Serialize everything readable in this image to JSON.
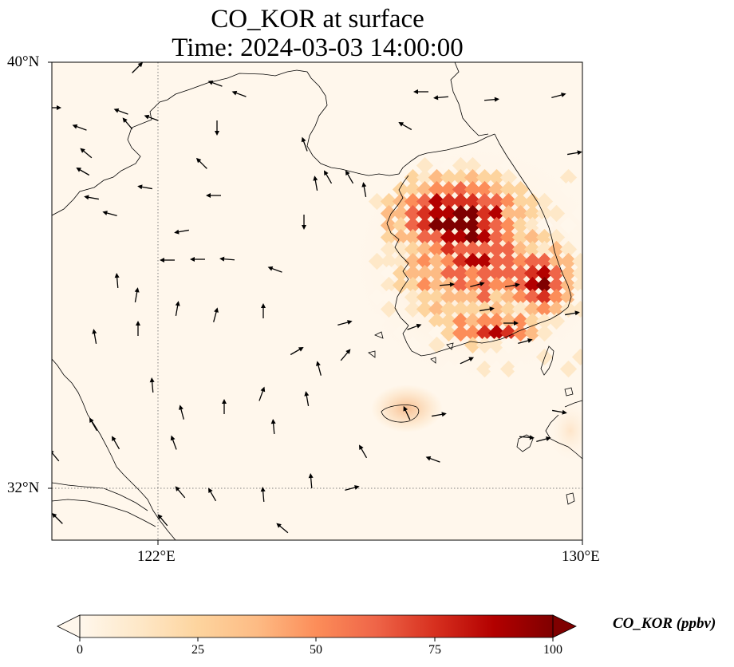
{
  "title": {
    "line1": "CO_KOR at surface",
    "line2": "Time: 2024-03-03 14:00:00"
  },
  "map": {
    "variable": "CO_KOR",
    "level": "surface",
    "time": "2024-03-03 14:00:00",
    "lon_range": [
      120.0,
      130.0
    ],
    "lat_range": [
      31.0,
      40.0
    ],
    "lat_ticks": [
      {
        "value": 40,
        "label": "40°N"
      },
      {
        "value": 32,
        "label": "32°N"
      }
    ],
    "lon_ticks": [
      {
        "value": 122,
        "label": "122°E"
      },
      {
        "value": 130,
        "label": "130°E"
      }
    ],
    "gridlines": {
      "style": "dotted",
      "lon": [
        122
      ],
      "lat": [
        32
      ]
    },
    "high_concentration_region": "Korean Peninsula",
    "wind_vectors": "shown"
  },
  "colorbar": {
    "label": "CO_KOR (ppbv)",
    "colormap": "OrRd",
    "min": 0,
    "max": 100,
    "extend": "both",
    "ticks": [
      {
        "value": 0,
        "label": "0"
      },
      {
        "value": 25,
        "label": "25"
      },
      {
        "value": 50,
        "label": "50"
      },
      {
        "value": 75,
        "label": "75"
      },
      {
        "value": 100,
        "label": "100"
      }
    ],
    "colors": [
      "#fff7ec",
      "#fee8c8",
      "#fdd49e",
      "#fdbb84",
      "#fc8d59",
      "#ef6548",
      "#d7301f",
      "#b30000",
      "#7f0000"
    ]
  }
}
